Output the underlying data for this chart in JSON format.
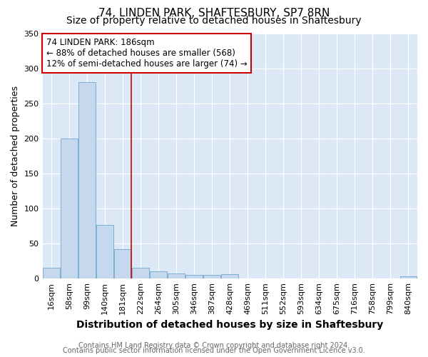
{
  "title1": "74, LINDEN PARK, SHAFTESBURY, SP7 8RN",
  "title2": "Size of property relative to detached houses in Shaftesbury",
  "xlabel": "Distribution of detached houses by size in Shaftesbury",
  "ylabel": "Number of detached properties",
  "categories": [
    "16sqm",
    "58sqm",
    "99sqm",
    "140sqm",
    "181sqm",
    "222sqm",
    "264sqm",
    "305sqm",
    "346sqm",
    "387sqm",
    "428sqm",
    "469sqm",
    "511sqm",
    "552sqm",
    "593sqm",
    "634sqm",
    "675sqm",
    "716sqm",
    "758sqm",
    "799sqm",
    "840sqm"
  ],
  "values": [
    15,
    200,
    280,
    77,
    42,
    15,
    10,
    7,
    5,
    5,
    6,
    0,
    0,
    0,
    0,
    0,
    0,
    0,
    0,
    0,
    3
  ],
  "bar_color": "#c5d8ee",
  "bar_edge_color": "#7aafd4",
  "red_line_index": 4,
  "annotation_text": "74 LINDEN PARK: 186sqm\n← 88% of detached houses are smaller (568)\n12% of semi-detached houses are larger (74) →",
  "annotation_box_color": "#ffffff",
  "annotation_box_edge_color": "#cc0000",
  "ylim": [
    0,
    350
  ],
  "background_color": "#ffffff",
  "plot_bg_color": "#dce8f5",
  "footer1": "Contains HM Land Registry data © Crown copyright and database right 2024.",
  "footer2": "Contains public sector information licensed under the Open Government Licence v3.0.",
  "title1_fontsize": 11,
  "title2_fontsize": 10,
  "xlabel_fontsize": 10,
  "ylabel_fontsize": 9,
  "tick_fontsize": 8,
  "annotation_fontsize": 8.5,
  "footer_fontsize": 7
}
